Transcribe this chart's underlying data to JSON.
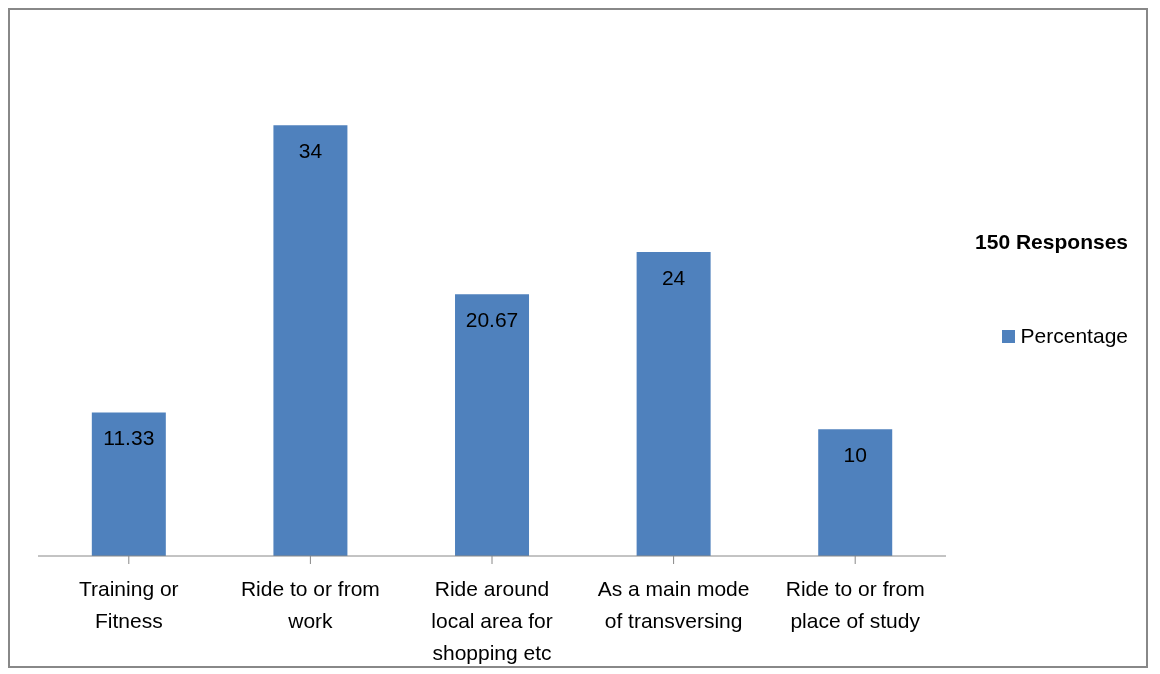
{
  "chart_data": {
    "type": "bar",
    "categories": [
      "Training or Fitness",
      "Ride to or from work",
      "Ride around local area for shopping etc",
      "As a main mode of transversing",
      "Ride to or from place of study"
    ],
    "series": [
      {
        "name": "Percentage",
        "color": "#4f81bd",
        "values": [
          11.33,
          34,
          20.67,
          24,
          10
        ]
      }
    ],
    "legend_title": "150 Responses",
    "legend": "right",
    "data_labels": true,
    "grid": false
  }
}
